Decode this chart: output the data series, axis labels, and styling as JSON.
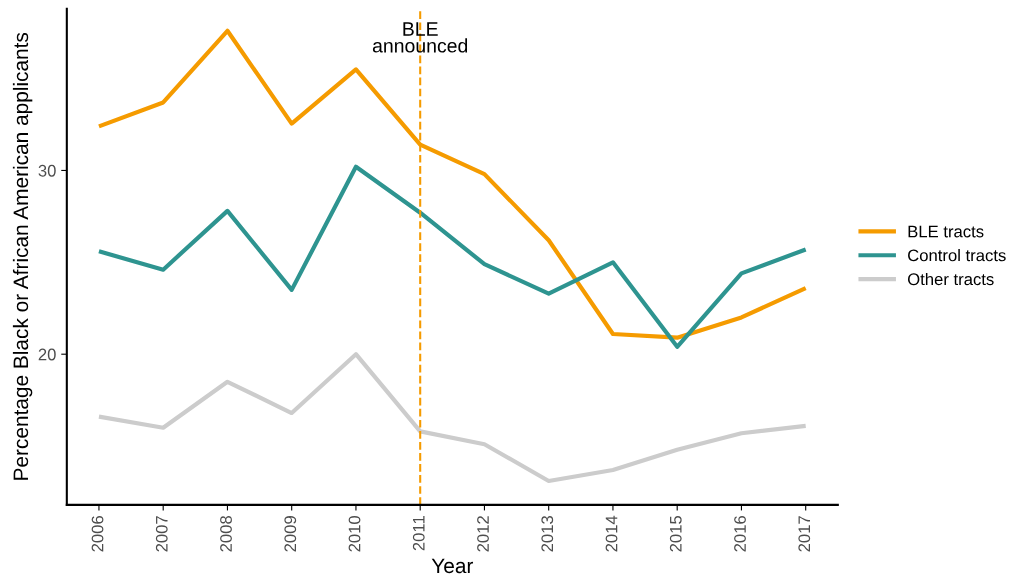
{
  "chart_data": {
    "type": "line",
    "xlabel": "Year",
    "ylabel": "Percentage Black or African American applicants",
    "categories": [
      "2006",
      "2007",
      "2008",
      "2009",
      "2010",
      "2011",
      "2012",
      "2013",
      "2014",
      "2015",
      "2016",
      "2017"
    ],
    "series": [
      {
        "name": "BLE tracts",
        "color": "#f59b00",
        "values": [
          32.4,
          33.7,
          37.6,
          32.55,
          35.5,
          31.4,
          29.8,
          26.2,
          21.1,
          20.9,
          22.0,
          23.6
        ]
      },
      {
        "name": "Control tracts",
        "color": "#2e9490",
        "values": [
          25.6,
          24.6,
          27.8,
          23.5,
          30.2,
          27.7,
          24.9,
          23.3,
          25.0,
          20.4,
          24.4,
          25.7
        ]
      },
      {
        "name": "Other tracts",
        "color": "#cccccc",
        "values": [
          16.6,
          16.0,
          18.5,
          16.8,
          20.0,
          15.8,
          15.1,
          13.1,
          13.7,
          14.8,
          15.7,
          16.1
        ]
      }
    ],
    "ylim": [
      11.8,
      38.8
    ],
    "yticks": [
      20,
      30
    ],
    "ref_lines": [
      {
        "axis": "x",
        "value": "2011",
        "label": "BLE\nannounced",
        "color": "#f59b00",
        "line_style": "dashed"
      }
    ],
    "grid": false,
    "legend": "right",
    "marker": "none",
    "line_style": "solid"
  }
}
